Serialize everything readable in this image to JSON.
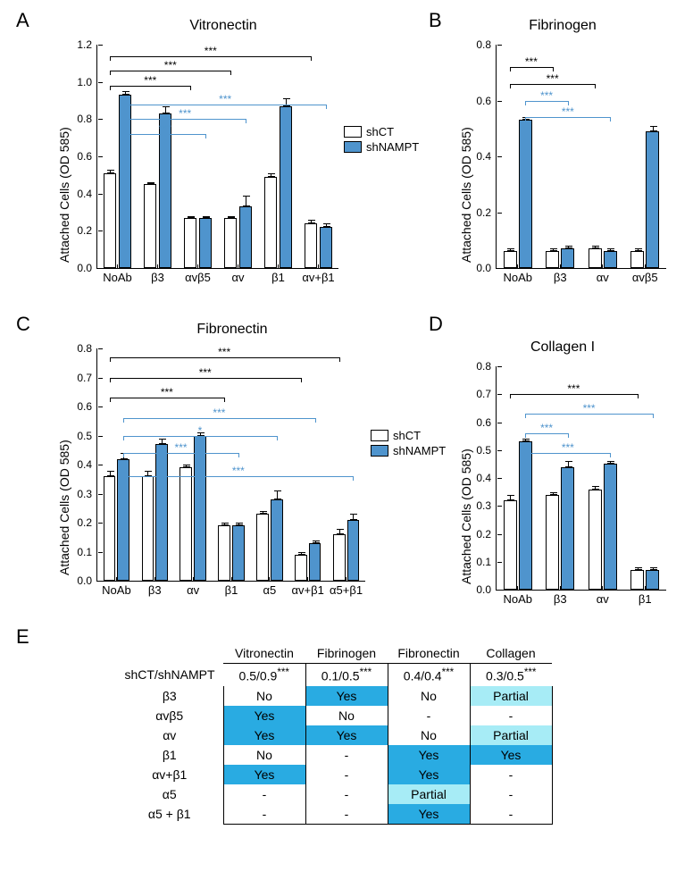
{
  "colors": {
    "shCT": "#ffffff",
    "shNAMPT": "#4f94cd",
    "sigCT": "#000000",
    "sigN": "#4f94cd",
    "tableYes": "#29abe2",
    "tablePartial": "#a7ecf6",
    "tableNo": "#ffffff",
    "tableBorder": "#000000"
  },
  "legend": {
    "shCT": "shCT",
    "shNAMPT": "shNAMPT"
  },
  "ylabel": "Attached Cells (OD 585)",
  "sigText": "***",
  "sigTextStar": "*",
  "charts": {
    "A": {
      "title": "Vitronectin",
      "ymax": 1.2,
      "ystep": 0.2,
      "cats": [
        "NoAb",
        "β3",
        "αvβ5",
        "αv",
        "β1",
        "αv+β1"
      ],
      "shCT": [
        0.51,
        0.45,
        0.27,
        0.27,
        0.49,
        0.24
      ],
      "shCT_e": [
        0.02,
        0.01,
        0.01,
        0.01,
        0.02,
        0.02
      ],
      "shN": [
        0.93,
        0.83,
        0.27,
        0.33,
        0.87,
        0.22
      ],
      "shN_e": [
        0.02,
        0.04,
        0.01,
        0.06,
        0.04,
        0.02
      ],
      "sigs": [
        {
          "from": 0,
          "to": 2,
          "series": 0,
          "level": 0.98
        },
        {
          "from": 0,
          "to": 3,
          "series": 0,
          "level": 1.06
        },
        {
          "from": 0,
          "to": 5,
          "series": 0,
          "level": 1.14
        },
        {
          "from": 0,
          "to": 2,
          "series": 1,
          "level": 0.72
        },
        {
          "from": 0,
          "to": 3,
          "series": 1,
          "level": 0.8
        },
        {
          "from": 0,
          "to": 5,
          "series": 1,
          "level": 0.88
        }
      ]
    },
    "B": {
      "title": "Fibrinogen",
      "ymax": 0.8,
      "ystep": 0.2,
      "cats": [
        "NoAb",
        "β3",
        "αv",
        "αvβ5"
      ],
      "shCT": [
        0.06,
        0.06,
        0.07,
        0.06
      ],
      "shCT_e": [
        0.01,
        0.01,
        0.01,
        0.01
      ],
      "shN": [
        0.53,
        0.07,
        0.06,
        0.49
      ],
      "shN_e": [
        0.01,
        0.01,
        0.01,
        0.02
      ],
      "sigs": [
        {
          "from": 0,
          "to": 1,
          "series": 0,
          "level": 0.72,
          "label": ""
        },
        {
          "from": 0,
          "to": 2,
          "series": 0,
          "level": 0.66
        },
        {
          "from": 0,
          "to": 1,
          "series": 1,
          "level": 0.6
        },
        {
          "from": 0,
          "to": 2,
          "series": 1,
          "level": 0.54
        }
      ]
    },
    "C": {
      "title": "Fibronectin",
      "ymax": 0.8,
      "ystep": 0.1,
      "cats": [
        "NoAb",
        "β3",
        "αv",
        "β1",
        "α5",
        "αv+β1",
        "α5+β1"
      ],
      "shCT": [
        0.36,
        0.36,
        0.39,
        0.19,
        0.23,
        0.09,
        0.16
      ],
      "shCT_e": [
        0.02,
        0.02,
        0.01,
        0.01,
        0.01,
        0.01,
        0.02
      ],
      "shN": [
        0.42,
        0.47,
        0.5,
        0.19,
        0.28,
        0.13,
        0.21
      ],
      "shN_e": [
        0.02,
        0.02,
        0.01,
        0.01,
        0.03,
        0.01,
        0.02
      ],
      "sigs": [
        {
          "from": 0,
          "to": 3,
          "series": 0,
          "level": 0.63
        },
        {
          "from": 0,
          "to": 5,
          "series": 0,
          "level": 0.7
        },
        {
          "from": 0,
          "to": 6,
          "series": 0,
          "level": 0.77
        },
        {
          "from": 0,
          "to": 3,
          "series": 1,
          "level": 0.44
        },
        {
          "from": 0,
          "to": 4,
          "series": 1,
          "level": 0.5,
          "text": "*"
        },
        {
          "from": 0,
          "to": 5,
          "series": 1,
          "level": 0.56
        },
        {
          "from": 0,
          "to": 6,
          "series": 1,
          "level": 0.36
        }
      ]
    },
    "D": {
      "title": "Collagen I",
      "ymax": 0.8,
      "ystep": 0.1,
      "cats": [
        "NoAb",
        "β3",
        "αv",
        "β1"
      ],
      "shCT": [
        0.32,
        0.34,
        0.36,
        0.07
      ],
      "shCT_e": [
        0.02,
        0.01,
        0.01,
        0.01
      ],
      "shN": [
        0.53,
        0.44,
        0.45,
        0.07
      ],
      "shN_e": [
        0.01,
        0.02,
        0.01,
        0.01
      ],
      "sigs": [
        {
          "from": 0,
          "to": 3,
          "series": 0,
          "level": 0.7
        },
        {
          "from": 0,
          "to": 3,
          "series": 1,
          "level": 0.63
        },
        {
          "from": 0,
          "to": 1,
          "series": 1,
          "level": 0.56
        },
        {
          "from": 0,
          "to": 2,
          "series": 1,
          "level": 0.49
        }
      ]
    }
  },
  "table": {
    "header_left": "shCT/shNAMPT",
    "columns": [
      "Vitronectin",
      "Fibrinogen",
      "Fibronectin",
      "Collagen"
    ],
    "shrow": [
      "0.5/0.9***",
      "0.1/0.5***",
      "0.4/0.4***",
      "0.3/0.5***"
    ],
    "rows": [
      {
        "lab": "β3",
        "cells": [
          {
            "t": "No",
            "c": "No"
          },
          {
            "t": "Yes",
            "c": "Yes"
          },
          {
            "t": "No",
            "c": "No"
          },
          {
            "t": "Partial",
            "c": "Partial"
          }
        ]
      },
      {
        "lab": "αvβ5",
        "cells": [
          {
            "t": "Yes",
            "c": "Yes"
          },
          {
            "t": "No",
            "c": "No"
          },
          {
            "t": "-",
            "c": "-"
          },
          {
            "t": "-",
            "c": "-"
          }
        ]
      },
      {
        "lab": "αv",
        "cells": [
          {
            "t": "Yes",
            "c": "Yes"
          },
          {
            "t": "Yes",
            "c": "Yes"
          },
          {
            "t": "No",
            "c": "No"
          },
          {
            "t": "Partial",
            "c": "Partial"
          }
        ]
      },
      {
        "lab": "β1",
        "cells": [
          {
            "t": "No",
            "c": "No"
          },
          {
            "t": "-",
            "c": "-"
          },
          {
            "t": "Yes",
            "c": "Yes"
          },
          {
            "t": "Yes",
            "c": "Yes"
          }
        ]
      },
      {
        "lab": "αv+β1",
        "cells": [
          {
            "t": "Yes",
            "c": "Yes"
          },
          {
            "t": "-",
            "c": "-"
          },
          {
            "t": "Yes",
            "c": "Yes"
          },
          {
            "t": "-",
            "c": "-"
          }
        ]
      },
      {
        "lab": "α5",
        "cells": [
          {
            "t": "-",
            "c": "-"
          },
          {
            "t": "-",
            "c": "-"
          },
          {
            "t": "Partial",
            "c": "Partial"
          },
          {
            "t": "-",
            "c": "-"
          }
        ]
      },
      {
        "lab": "α5 + β1",
        "cells": [
          {
            "t": "-",
            "c": "-"
          },
          {
            "t": "-",
            "c": "-"
          },
          {
            "t": "Yes",
            "c": "Yes"
          },
          {
            "t": "-",
            "c": "-"
          }
        ]
      }
    ]
  },
  "panels": {
    "A": "A",
    "B": "B",
    "C": "C",
    "D": "D",
    "E": "E"
  }
}
